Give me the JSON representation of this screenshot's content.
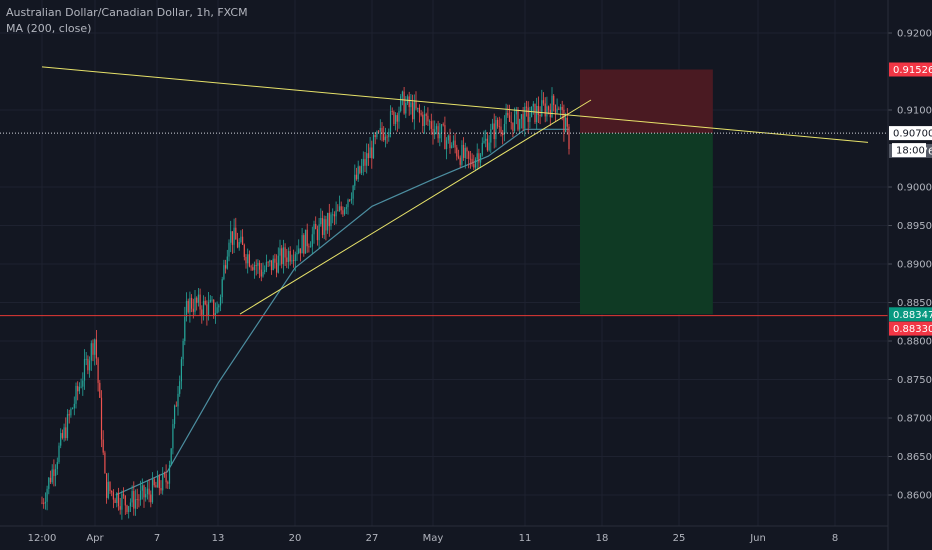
{
  "legend": {
    "symbol_line": "Australian Dollar/Canadian Dollar, 1h, FXCM",
    "indicator_line": "MA (200, close)"
  },
  "colors": {
    "background": "#131722",
    "grid": "#1e2230",
    "up_candle": "#26a69a",
    "down_candle": "#ef5350",
    "ma_line": "#4c8ea0",
    "trendline": "#e8e36a",
    "stop_zone": "#4a1a22",
    "target_zone": "#0f3a24",
    "stop_tag": "#f23645",
    "target_tag": "#089981",
    "current_tag": "#ffffff",
    "gray_tag": "#555a66"
  },
  "chart_data": {
    "type": "candlestick",
    "instrument": "Australian Dollar/Canadian Dollar",
    "timeframe": "1h",
    "source": "FXCM",
    "indicators": [
      "MA (200, close)"
    ],
    "y_ticks": [
      "0.92000",
      "0.91000",
      "0.90000",
      "0.89500",
      "0.89000",
      "0.88500",
      "0.88000",
      "0.87500",
      "0.87000",
      "0.86500",
      "0.86000"
    ],
    "x_ticks": [
      "12:00",
      "Apr",
      "7",
      "13",
      "20",
      "27",
      "May",
      "11",
      "18",
      "25",
      "Jun",
      "8"
    ],
    "ylim": [
      0.8575,
      0.9235
    ],
    "price_path": [
      {
        "date": "Mar 30",
        "price": 0.859
      },
      {
        "date": "Apr 1",
        "price": 0.8805
      },
      {
        "date": "Apr 2",
        "price": 0.861
      },
      {
        "date": "Apr 4",
        "price": 0.859
      },
      {
        "date": "Apr 6",
        "price": 0.86
      },
      {
        "date": "Apr 8",
        "price": 0.862
      },
      {
        "date": "Apr 10",
        "price": 0.885
      },
      {
        "date": "Apr 13",
        "price": 0.884
      },
      {
        "date": "Apr 14",
        "price": 0.894
      },
      {
        "date": "Apr 17",
        "price": 0.889
      },
      {
        "date": "Apr 21",
        "price": 0.893
      },
      {
        "date": "Apr 24",
        "price": 0.8965
      },
      {
        "date": "Apr 27",
        "price": 0.905
      },
      {
        "date": "Apr 29",
        "price": 0.911
      },
      {
        "date": "May 1",
        "price": 0.908
      },
      {
        "date": "May 5",
        "price": 0.903
      },
      {
        "date": "May 8",
        "price": 0.908
      },
      {
        "date": "May 11",
        "price": 0.909
      },
      {
        "date": "May 14",
        "price": 0.911
      },
      {
        "date": "May 15",
        "price": 0.906
      }
    ],
    "ma200_path": [
      {
        "date": "Apr 3",
        "value": 0.86
      },
      {
        "date": "Apr 8",
        "value": 0.863
      },
      {
        "date": "Apr 13",
        "value": 0.8745
      },
      {
        "date": "Apr 20",
        "value": 0.8895
      },
      {
        "date": "Apr 27",
        "value": 0.8975
      },
      {
        "date": "May 1",
        "value": 0.901
      },
      {
        "date": "May 7",
        "value": 0.904
      },
      {
        "date": "May 11",
        "value": 0.9075
      },
      {
        "date": "May 15",
        "value": 0.9075
      }
    ],
    "trendlines": [
      {
        "name": "descending resistance",
        "from": {
          "date": "Mar 30",
          "price": 0.9156
        },
        "to": {
          "date": "Jun 11",
          "price": 0.9058
        }
      },
      {
        "name": "ascending support",
        "from": {
          "date": "Apr 15",
          "price": 0.8835
        },
        "to": {
          "date": "May 17",
          "price": 0.9113
        }
      }
    ],
    "position": {
      "type": "short",
      "entry": 0.907,
      "stop": 0.91526,
      "target": 0.88347,
      "start_date": "May 16",
      "end_date": "May 28"
    },
    "price_tags": [
      {
        "label": "0.91526",
        "value": 0.91526,
        "role": "stop"
      },
      {
        "label": "0.90700",
        "value": 0.907,
        "role": "entry"
      },
      {
        "label": "0.90676",
        "value": 0.90676,
        "role": "current"
      },
      {
        "label": "18:00",
        "value": 0.906,
        "role": "countdown"
      },
      {
        "label": "0.88347",
        "value": 0.88347,
        "role": "target"
      },
      {
        "label": "0.88330",
        "value": 0.8833,
        "role": "horizontal_line"
      }
    ]
  }
}
